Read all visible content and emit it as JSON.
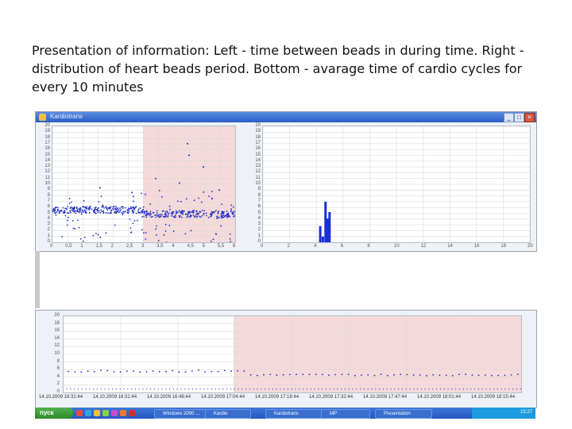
{
  "caption": "Presentation of information: Left  - time between beads  in during time. Right - distribution of  heart beads period. Bottom -  avarage  time of cardio cycles for every 10 minutes",
  "window": {
    "title": "Kardiotrans"
  },
  "colors": {
    "points": "#1f2fc8",
    "shade": "#f0b8b8",
    "bar": "#1a2fd6",
    "grid": "#d8dbe0"
  },
  "charts": {
    "left": {
      "yticks": [
        "20",
        "19",
        "18",
        "17",
        "16",
        "15",
        "14",
        "13",
        "12",
        "11",
        "10",
        "9",
        "8",
        "7",
        "6",
        "5",
        "4",
        "3",
        "2",
        "1",
        "0"
      ],
      "xticks": [
        "0",
        "0,5",
        "1",
        "1,5",
        "2",
        "2,5",
        "3",
        "3,5",
        "4",
        "4,5",
        "5",
        "5,5",
        "6"
      ]
    },
    "right": {
      "yticks": [
        "20",
        "19",
        "18",
        "17",
        "16",
        "15",
        "14",
        "13",
        "12",
        "11",
        "10",
        "9",
        "8",
        "7",
        "6",
        "5",
        "4",
        "3",
        "2",
        "1",
        "0"
      ],
      "xticks": [
        "0",
        "2",
        "4",
        "6",
        "8",
        "10",
        "12",
        "14",
        "16",
        "18",
        "20"
      ],
      "bars": [
        {
          "x": 4.2,
          "value": 2.8
        },
        {
          "x": 4.4,
          "value": 1.0
        },
        {
          "x": 4.6,
          "value": 7.0
        },
        {
          "x": 4.75,
          "value": 4.1
        },
        {
          "x": 4.9,
          "value": 5.2
        }
      ]
    },
    "bottom": {
      "yticks": [
        "20",
        "18",
        "16",
        "14",
        "12",
        "10",
        "8",
        "6",
        "4",
        "2",
        "0"
      ],
      "dates": [
        "14.10.2009 16:31:44",
        "14.10.2009 16:31:44",
        "14.10.2009 16:48:44",
        "14.10.2009 17:04:44",
        "14.10.2009 17:18:44",
        "14.10.2009 17:32:44",
        "14.10.2009 17:47:44",
        "14.10.2009 18:01:44",
        "14.10.2009 18:15:44"
      ]
    }
  },
  "taskbar": {
    "start": "пуск",
    "buttons": [
      "Windows 2000 ...",
      "Kardio",
      "Kardiotrans",
      "MP",
      "Presentation"
    ],
    "clock": "15:27"
  }
}
